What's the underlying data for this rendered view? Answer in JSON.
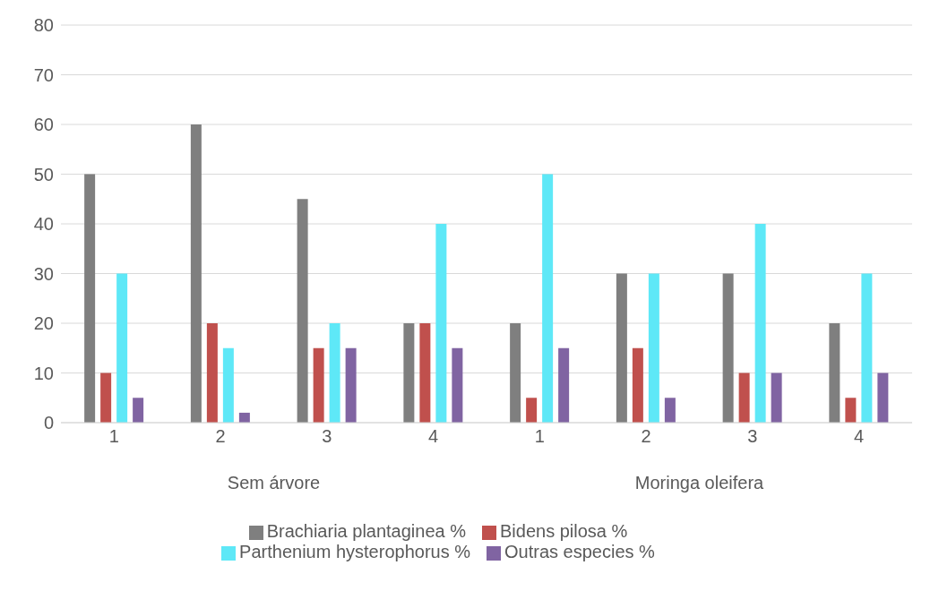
{
  "chart_data": {
    "type": "bar",
    "categories": [
      "1",
      "2",
      "3",
      "4",
      "1",
      "2",
      "3",
      "4"
    ],
    "series": [
      {
        "name": "Brachiaria plantaginea %",
        "color": "#7f7f7f",
        "values": [
          50,
          60,
          45,
          20,
          20,
          30,
          30,
          20
        ]
      },
      {
        "name": "Bidens pilosa %",
        "color": "#c0504d",
        "values": [
          10,
          20,
          15,
          20,
          5,
          15,
          10,
          5
        ]
      },
      {
        "name": "Parthenium hysterophorus %",
        "color": "#5ee8f7",
        "values": [
          30,
          15,
          20,
          40,
          50,
          30,
          40,
          30
        ]
      },
      {
        "name": "Outras especies %",
        "color": "#8064a2",
        "values": [
          5,
          2,
          15,
          15,
          15,
          5,
          10,
          10
        ]
      }
    ],
    "annotations": [
      "Sem árvore",
      "Moringa oleifera"
    ],
    "ylim": [
      0,
      80
    ],
    "yticks": [
      0,
      10,
      20,
      30,
      40,
      50,
      60,
      70,
      80
    ],
    "grid": "y",
    "legend": "bottom"
  }
}
